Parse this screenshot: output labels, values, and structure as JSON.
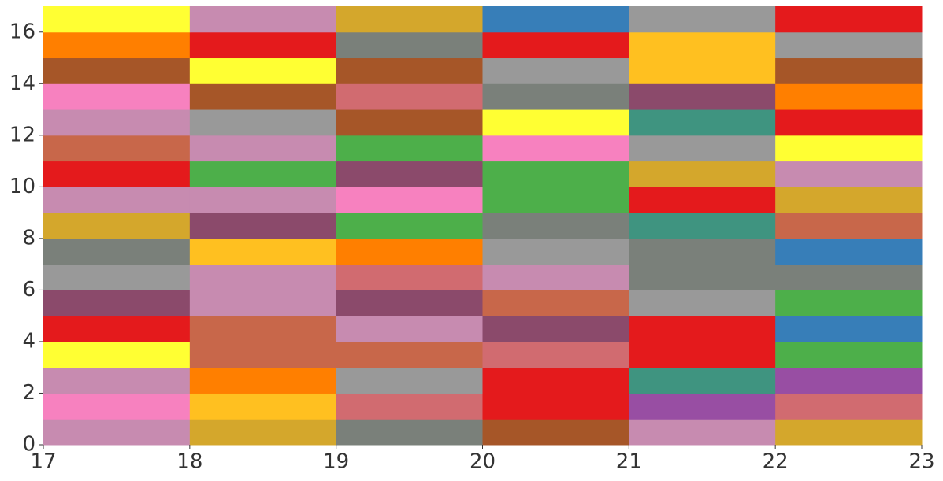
{
  "chart_data": {
    "type": "heatmap",
    "xlim": [
      17,
      23
    ],
    "ylim": [
      0,
      17
    ],
    "xticks": [
      17,
      18,
      19,
      20,
      21,
      22,
      23
    ],
    "yticks": [
      0,
      2,
      4,
      6,
      8,
      10,
      12,
      14,
      16
    ],
    "colors": [
      [
        "#c78bb0",
        "#d4a72c",
        "#7a807a",
        "#a65628",
        "#c78bb0",
        "#d4a72c"
      ],
      [
        "#f781bf",
        "#ffc020",
        "#d16b70",
        "#e41a1c",
        "#984ea3",
        "#d16b70"
      ],
      [
        "#c78bb0",
        "#ff7f00",
        "#999999",
        "#e41a1c",
        "#3f9480",
        "#984ea3"
      ],
      [
        "#ffff33",
        "#c8674a",
        "#c8674a",
        "#d16b70",
        "#e41a1c",
        "#4daf4a"
      ],
      [
        "#e41a1c",
        "#c8674a",
        "#c78bb0",
        "#8b4a6b",
        "#e41a1c",
        "#377eb8"
      ],
      [
        "#8b4a6b",
        "#c78bb0",
        "#8b4a6b",
        "#c8674a",
        "#999999",
        "#4daf4a"
      ],
      [
        "#999999",
        "#c78bb0",
        "#d16b70",
        "#c78bb0",
        "#7a807a",
        "#7a807a"
      ],
      [
        "#7a807a",
        "#ffc020",
        "#ff7f00",
        "#999999",
        "#7a807a",
        "#377eb8"
      ],
      [
        "#d4a72c",
        "#8b4a6b",
        "#4daf4a",
        "#7a807a",
        "#3f9480",
        "#c8674a"
      ],
      [
        "#c78bb0",
        "#c78bb0",
        "#f781bf",
        "#4daf4a",
        "#e41a1c",
        "#d4a72c"
      ],
      [
        "#e41a1c",
        "#4daf4a",
        "#8b4a6b",
        "#4daf4a",
        "#d4a72c",
        "#c78bb0"
      ],
      [
        "#c8674a",
        "#c78bb0",
        "#4daf4a",
        "#f781bf",
        "#999999",
        "#ffff33"
      ],
      [
        "#c78bb0",
        "#999999",
        "#a65628",
        "#ffff33",
        "#3f9480",
        "#e41a1c"
      ],
      [
        "#f781bf",
        "#a65628",
        "#d16b70",
        "#7a807a",
        "#8b4a6b",
        "#ff7f00"
      ],
      [
        "#a65628",
        "#ffff33",
        "#a65628",
        "#999999",
        "#ffc020",
        "#a65628"
      ],
      [
        "#ff7f00",
        "#e41a1c",
        "#7a807a",
        "#e41a1c",
        "#ffc020",
        "#999999"
      ],
      [
        "#ffff33",
        "#c78bb0",
        "#d4a72c",
        "#377eb8",
        "#999999",
        "#e41a1c"
      ]
    ]
  }
}
